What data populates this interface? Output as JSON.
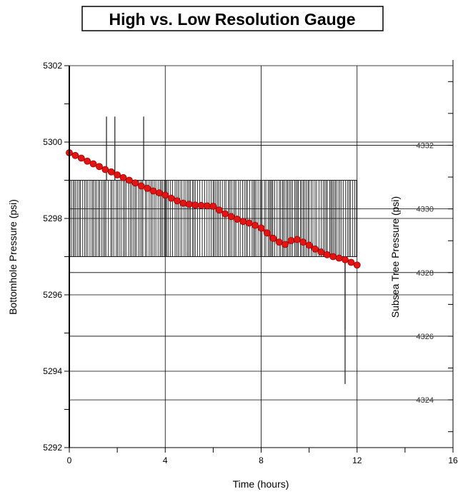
{
  "chart_data": {
    "type": "line",
    "title": "High vs. Low Resolution Gauge",
    "xlabel": "Time (hours)",
    "ylabel": "Bottomhole Pressure (psi)",
    "y2label": "Subsea Tree Pressure (psi)",
    "xlim": [
      0,
      16
    ],
    "ylim": [
      5292,
      5302
    ],
    "y2lim": [
      4322.5,
      4334.5
    ],
    "x_ticks": [
      0,
      4,
      8,
      12,
      16
    ],
    "y_ticks": [
      5292,
      5294,
      5296,
      5298,
      5300,
      5302
    ],
    "y2_ticks": [
      4324,
      4326,
      4328,
      4330,
      4332
    ],
    "grid": true,
    "series": [
      {
        "name": "",
        "axis": "left",
        "color": "#e21414",
        "marker": "circle",
        "x": [
          0,
          0.25,
          0.5,
          0.75,
          1,
          1.25,
          1.5,
          1.75,
          2,
          2.25,
          2.5,
          2.75,
          3,
          3.25,
          3.5,
          3.75,
          4,
          4.25,
          4.5,
          4.75,
          5,
          5.25,
          5.5,
          5.75,
          6,
          6.25,
          6.5,
          6.75,
          7,
          7.25,
          7.5,
          7.75,
          8,
          8.25,
          8.5,
          8.75,
          9,
          9.25,
          9.5,
          9.75,
          10,
          10.25,
          10.5,
          10.75,
          11,
          11.25,
          11.5,
          11.75,
          12
        ],
        "values": [
          5299.72,
          5299.65,
          5299.58,
          5299.5,
          5299.43,
          5299.36,
          5299.28,
          5299.22,
          5299.14,
          5299.07,
          5299.0,
          5298.93,
          5298.85,
          5298.79,
          5298.72,
          5298.67,
          5298.61,
          5298.53,
          5298.46,
          5298.4,
          5298.37,
          5298.35,
          5298.34,
          5298.33,
          5298.32,
          5298.22,
          5298.12,
          5298.05,
          5297.98,
          5297.92,
          5297.88,
          5297.82,
          5297.75,
          5297.62,
          5297.48,
          5297.38,
          5297.32,
          5297.42,
          5297.45,
          5297.38,
          5297.3,
          5297.2,
          5297.12,
          5297.05,
          5297.0,
          5296.96,
          5296.92,
          5296.85,
          5296.78
        ]
      },
      {
        "name": "",
        "axis": "right",
        "color": "#1a1a1a",
        "style": "step",
        "levels": [
          4328.5,
          4330.9
        ],
        "spikes": [
          {
            "x": 1.55,
            "value": 4332.9
          },
          {
            "x": 1.9,
            "value": 4332.9
          },
          {
            "x": 3.1,
            "value": 4332.9
          },
          {
            "x": 11.5,
            "value": 4326.2
          },
          {
            "x": 11.5,
            "value": 4324.5
          }
        ]
      }
    ]
  }
}
